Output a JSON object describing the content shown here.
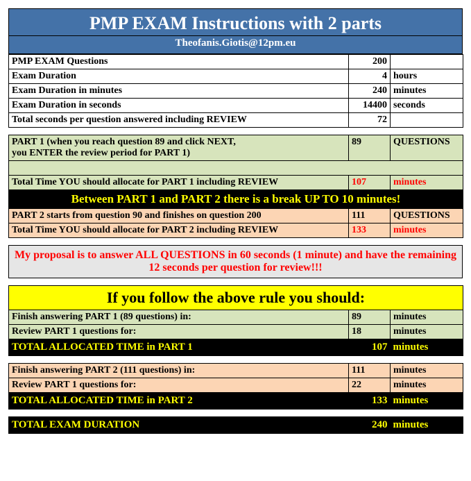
{
  "header": {
    "title": "PMP EXAM Instructions with 2 parts",
    "subtitle": "Theofanis.Giotis@12pm.eu"
  },
  "basic": [
    {
      "label": "PMP EXAM Questions",
      "value": "200",
      "unit": ""
    },
    {
      "label": "Exam Duration",
      "value": "4",
      "unit": "hours"
    },
    {
      "label": "Exam Duration in minutes",
      "value": "240",
      "unit": "minutes"
    },
    {
      "label": "Exam Duration in seconds",
      "value": "14400",
      "unit": "seconds"
    },
    {
      "label": "Total seconds per question answered including REVIEW",
      "value": "72",
      "unit": ""
    }
  ],
  "parts": {
    "p1_a": "PART 1 (when you reach question 89 and click NEXT,",
    "p1_b": "you ENTER the review period for PART 1)",
    "p1_q_val": "89",
    "p1_q_unit": "QUESTIONS",
    "p1_time_label": "Total Time YOU should allocate for PART 1 including REVIEW",
    "p1_time_val": "107",
    "p1_time_unit": "minutes",
    "between": "Between PART 1 and PART 2 there is a break UP TO 10 minutes!",
    "p2_label": "PART 2 starts from question 90 and finishes on question 200",
    "p2_q_val": "111",
    "p2_q_unit": "QUESTIONS",
    "p2_time_label": "Total Time YOU should allocate for PART 2 including REVIEW",
    "p2_time_val": "133",
    "p2_time_unit": "minutes"
  },
  "proposal": "My proposal is to answer ALL QUESTIONS in 60 seconds (1 minute) and have the remaining 12 seconds per question for review!!!",
  "follow": "If you follow the above rule you should:",
  "part1calc": {
    "r1_label": "Finish answering PART 1 (89 questions) in:",
    "r1_val": "89",
    "r1_unit": "minutes",
    "r2_label": "Review PART 1 questions for:",
    "r2_val": "18",
    "r2_unit": "minutes",
    "total_label": "TOTAL ALLOCATED TIME in PART 1",
    "total_val": "107",
    "total_unit": "minutes"
  },
  "part2calc": {
    "r1_label": "Finish answering PART 2 (111 questions) in:",
    "r1_val": "111",
    "r1_unit": "minutes",
    "r2_label": "Review PART 1 questions for:",
    "r2_val": "22",
    "r2_unit": "minutes",
    "total_label": "TOTAL ALLOCATED TIME in PART 2",
    "total_val": "133",
    "total_unit": "minutes"
  },
  "grand": {
    "label": "TOTAL EXAM DURATION",
    "val": "240",
    "unit": "minutes"
  }
}
